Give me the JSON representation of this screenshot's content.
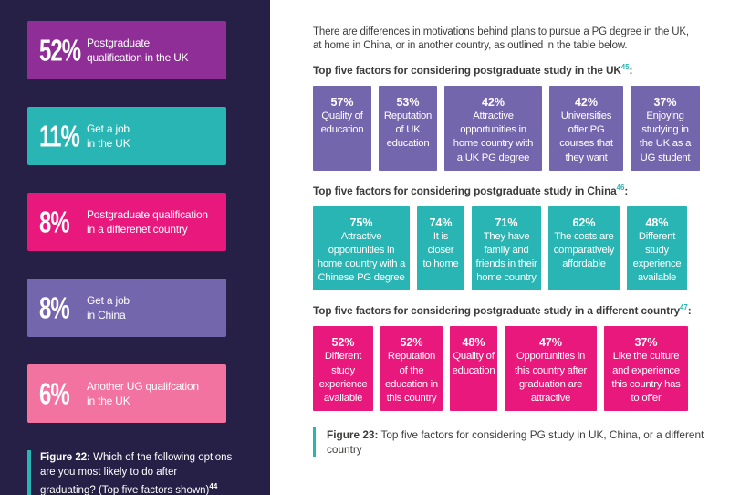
{
  "colors": {
    "sidebar_bg": "#272046",
    "purple": "#8E2E96",
    "teal": "#29B5B3",
    "pink": "#E9187C",
    "violet": "#7466AD",
    "pink_light": "#F2739F",
    "text_dark": "#3C3C3B",
    "white": "#FFFFFF"
  },
  "sidebar": {
    "cards": [
      {
        "pct": "52%",
        "label": "Postgraduate\nqualification in the UK"
      },
      {
        "pct": "11%",
        "label": "Get a job\nin the UK"
      },
      {
        "pct": "8%",
        "label": "Postgraduate qualification\nin a differenet country"
      },
      {
        "pct": "8%",
        "label": "Get a job\nin China"
      },
      {
        "pct": "6%",
        "label": "Another UG qualifcation\nin the UK"
      }
    ],
    "figure_caption": {
      "label": "Figure 22:",
      "text": " Which of the following options are you most likely to do after graduating? (Top five factors shown)",
      "footnote": "44"
    }
  },
  "main": {
    "intro": "There are differences in motivations behind plans to pursue a PG degree in the UK,\nat home in China, or in another country, as outlined in the table below.",
    "sections": [
      {
        "heading": "Top five factors for considering postgraduate study in the UK",
        "footnote": "45",
        "suffix": ":",
        "boxes": [
          {
            "pct": "57%",
            "label": "Quality of\neducation"
          },
          {
            "pct": "53%",
            "label": "Reputation\nof UK\neducation"
          },
          {
            "pct": "42%",
            "label": "Attractive\nopportunities in\nhome country with\na UK PG degree"
          },
          {
            "pct": "42%",
            "label": "Universities\noffer PG\ncourses that\nthey want"
          },
          {
            "pct": "37%",
            "label": "Enjoying\nstudying in\nthe UK as a\nUG student"
          }
        ]
      },
      {
        "heading": "Top five factors for considering postgraduate study in China",
        "footnote": "46",
        "suffix": ":",
        "boxes": [
          {
            "pct": "75%",
            "label": "Attractive\nopportunities in\nhome country with a\nChinese PG degree"
          },
          {
            "pct": "74%",
            "label": "It is\ncloser\nto home"
          },
          {
            "pct": "71%",
            "label": "They have\nfamily and\nfriends in their\nhome country"
          },
          {
            "pct": "62%",
            "label": "The costs are\ncomparatively\naffordable"
          },
          {
            "pct": "48%",
            "label": "Different\nstudy\nexperience\navailable"
          }
        ]
      },
      {
        "heading": "Top five factors for considering postgraduate study in a different country",
        "footnote": "47",
        "suffix": ":",
        "boxes": [
          {
            "pct": "52%",
            "label": "Different\nstudy\nexperience\navailable"
          },
          {
            "pct": "52%",
            "label": "Reputation\nof the\neducation in\nthis country"
          },
          {
            "pct": "48%",
            "label": "Quality of\neducation"
          },
          {
            "pct": "47%",
            "label": "Opportunities in\nthis country after\ngraduation are\nattractive"
          },
          {
            "pct": "37%",
            "label": "Like the culture\nand experience\nthis country has\nto offer"
          }
        ]
      }
    ],
    "figure_caption": {
      "label": "Figure 23:",
      "text": " Top five factors for considering PG study in UK, China, or a different country"
    }
  }
}
